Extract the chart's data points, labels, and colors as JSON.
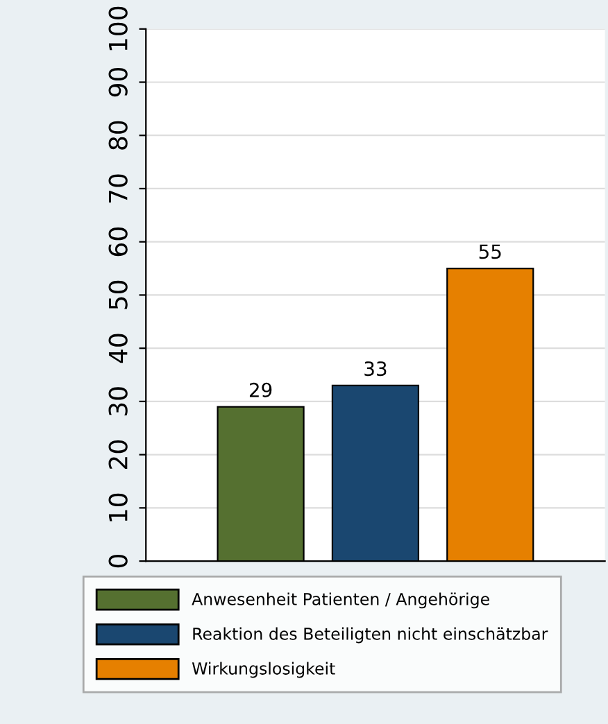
{
  "chart_data": {
    "type": "bar",
    "categories": [
      null
    ],
    "series": [
      {
        "name": "Anwesenheit Patienten / Angehörige",
        "color": "#557030",
        "values": [
          29
        ]
      },
      {
        "name": "Reaktion des Beteiligten nicht einschätzbar",
        "color": "#1a4770",
        "values": [
          33
        ]
      },
      {
        "name": "Wirkungslosigkeit",
        "color": "#e68000",
        "values": [
          55
        ]
      }
    ],
    "ylim": [
      0,
      100
    ],
    "yticks": [
      0,
      10,
      20,
      30,
      40,
      50,
      60,
      70,
      80,
      90,
      100
    ],
    "grid": "y",
    "legend": "bottom",
    "data_labels": true
  }
}
